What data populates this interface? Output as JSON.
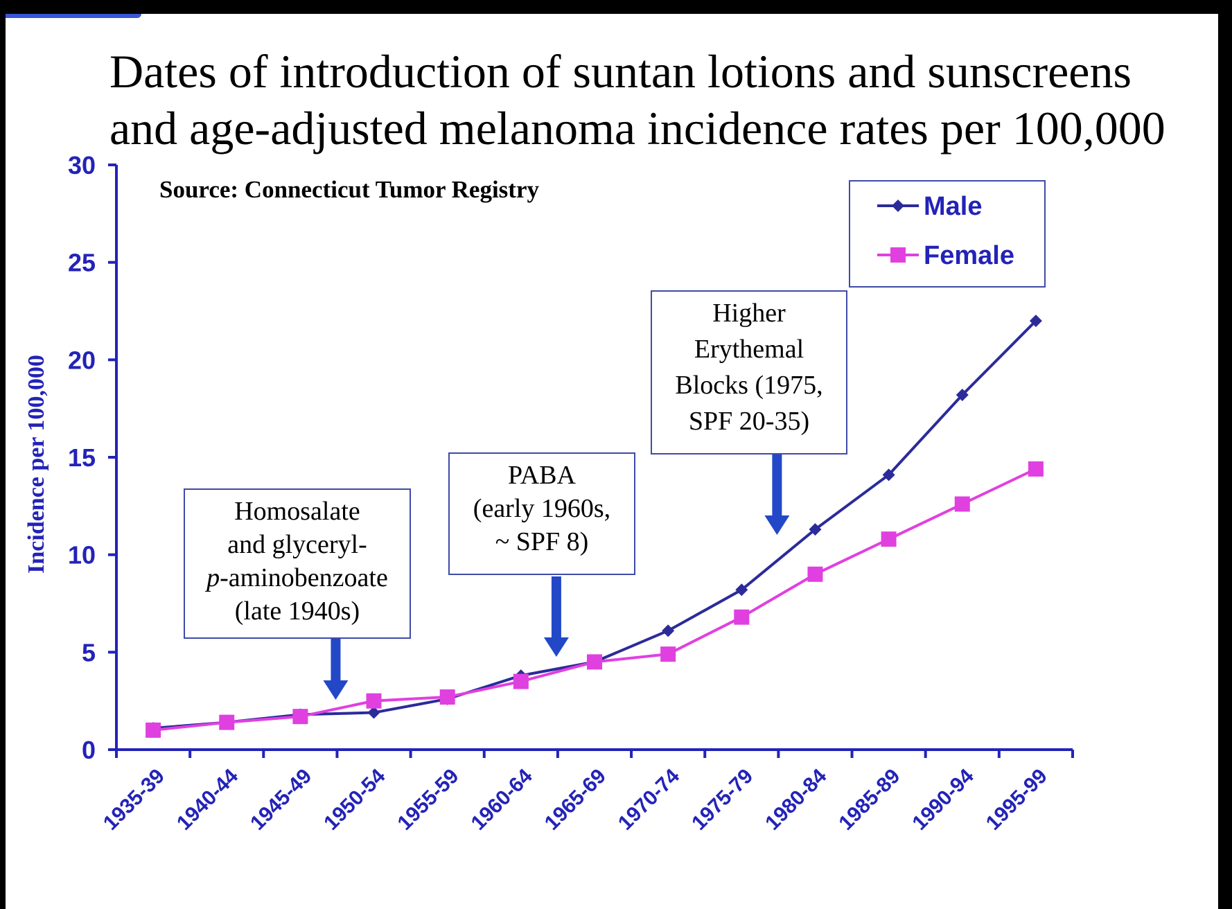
{
  "title": {
    "line1": "Dates of introduction of suntan lotions and sunscreens",
    "line2": "and age-adjusted melanoma incidence rates per 100,000"
  },
  "source": "Source: Connecticut Tumor Registry",
  "annotations": [
    {
      "lines": [
        "Homosalate",
        "and glyceryl-",
        "p-aminobenzoate",
        "(late 1940s)"
      ],
      "arrow_category": "1945-49"
    },
    {
      "lines": [
        "PABA",
        "(early 1960s,",
        "~ SPF 8)"
      ],
      "arrow_category": "1960-64"
    },
    {
      "lines": [
        "Higher",
        "Erythemal",
        "Blocks (1975,",
        "SPF 20-35)"
      ],
      "arrow_category": "1975-79"
    }
  ],
  "colors": {
    "male": "#2b2b9a",
    "female": "#e040e0",
    "axis": "#2323b8",
    "arrow": "#2248c8"
  },
  "chart_data": {
    "type": "line",
    "title": "Dates of introduction of suntan lotions and sunscreens and age-adjusted melanoma incidence rates per 100,000",
    "ylabel": "Incidence per 100,000",
    "xlabel": "",
    "ylim": [
      0,
      30
    ],
    "yticks": [
      0,
      5,
      10,
      15,
      20,
      25,
      30
    ],
    "categories": [
      "1935-39",
      "1940-44",
      "1945-49",
      "1950-54",
      "1955-59",
      "1960-64",
      "1965-69",
      "1970-74",
      "1975-79",
      "1980-84",
      "1985-89",
      "1990-94",
      "1995-99"
    ],
    "series": [
      {
        "name": "Male",
        "marker": "diamond",
        "values": [
          1.1,
          1.4,
          1.8,
          1.9,
          2.6,
          3.8,
          4.5,
          6.1,
          8.2,
          11.3,
          14.1,
          18.2,
          22.0
        ]
      },
      {
        "name": "Female",
        "marker": "square",
        "values": [
          1.0,
          1.4,
          1.7,
          2.5,
          2.7,
          3.5,
          4.5,
          4.9,
          6.8,
          9.0,
          10.8,
          12.6,
          14.4
        ]
      }
    ],
    "legend": "top-right"
  }
}
